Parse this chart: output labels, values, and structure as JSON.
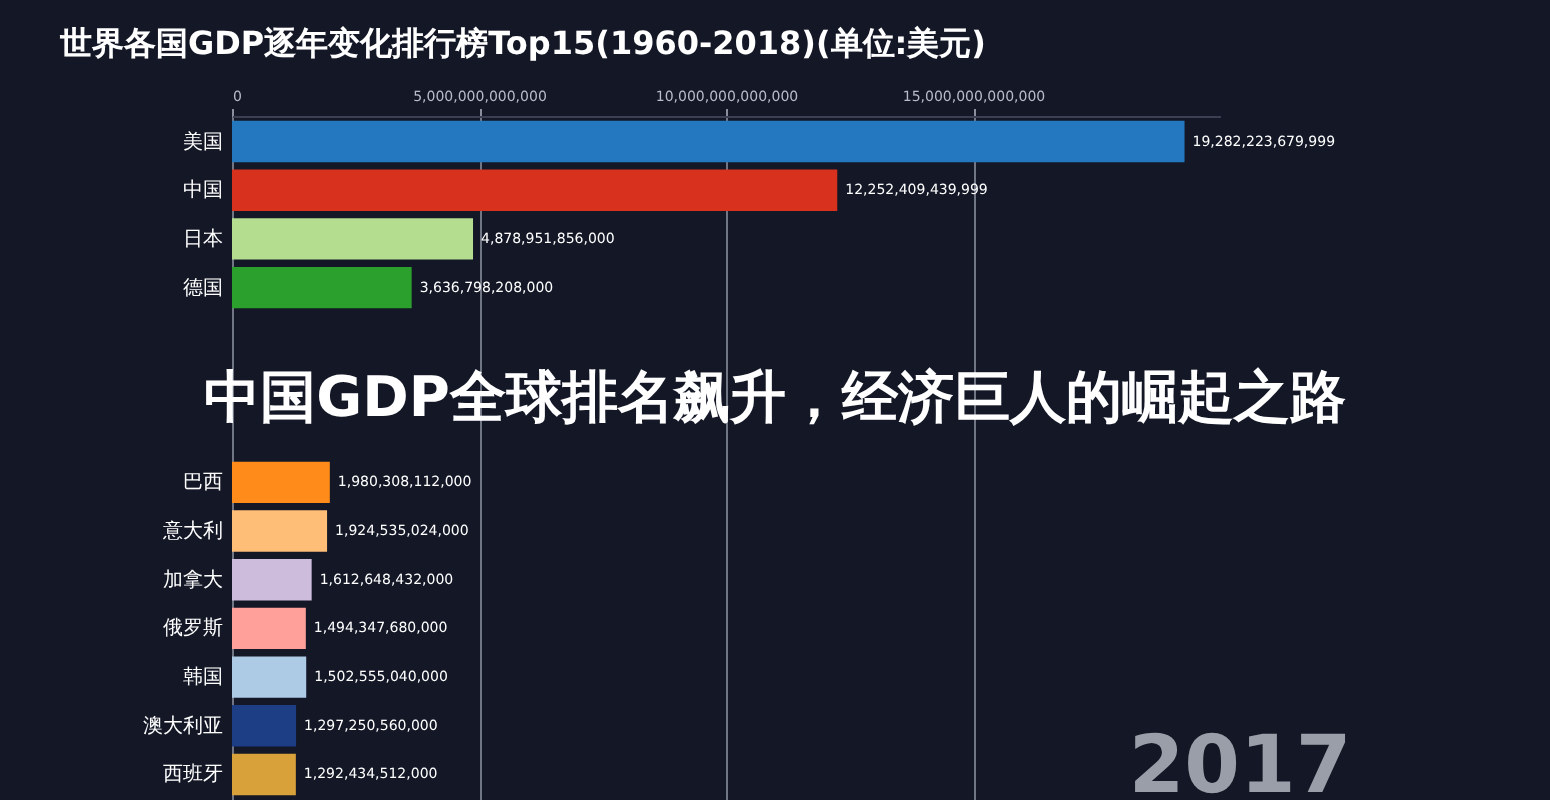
{
  "chart_data": {
    "type": "bar",
    "orientation": "horizontal",
    "title": "世界各国GDP逐年变化排行榜Top15(1960-2018)(单位:美元)",
    "categories": [
      "美国",
      "中国",
      "日本",
      "德国",
      null,
      null,
      null,
      "巴西",
      "意大利",
      "加拿大",
      "俄罗斯",
      "韩国",
      "澳大利亚",
      "西班牙"
    ],
    "values": [
      19282223679999,
      12252409439999,
      4878951856000,
      3636798208000,
      null,
      null,
      null,
      1980308112000,
      1924535024000,
      1612648432000,
      1494347680000,
      1502555040000,
      1297250560000,
      1292434512000
    ],
    "value_labels": [
      "19,282,223,679,999",
      "12,252,409,439,999",
      "4,878,951,856,000",
      "3,636,798,208,000",
      null,
      null,
      null,
      "1,980,308,112,000",
      "1,924,535,024,000",
      "1,612,648,432,000",
      "1,494,347,680,000",
      "1,502,555,040,000",
      "1,297,250,560,000",
      "1,292,434,512,000"
    ],
    "colors": [
      "#2378c0",
      "#d8321e",
      "#b5dd90",
      "#2ca02c",
      null,
      null,
      null,
      "#ff8c1a",
      "#ffbe78",
      "#cdbcdc",
      "#ffa09a",
      "#aecbe6",
      "#1d3d85",
      "#d9a13a"
    ],
    "xlim": [
      0,
      20000000000000
    ],
    "xticks": [
      0,
      {
        "value": 5000000000000,
        "label": "5,000,000,000,000"
      },
      {
        "value": 10000000000000,
        "label": "10,000,000,000,000"
      },
      {
        "value": 15000000000000,
        "label": "15,000,000,000,000"
      }
    ],
    "grid": "x",
    "annotations": [
      "中国GDP全球排名飙升，经济巨人的崛起之路",
      "2017"
    ]
  }
}
